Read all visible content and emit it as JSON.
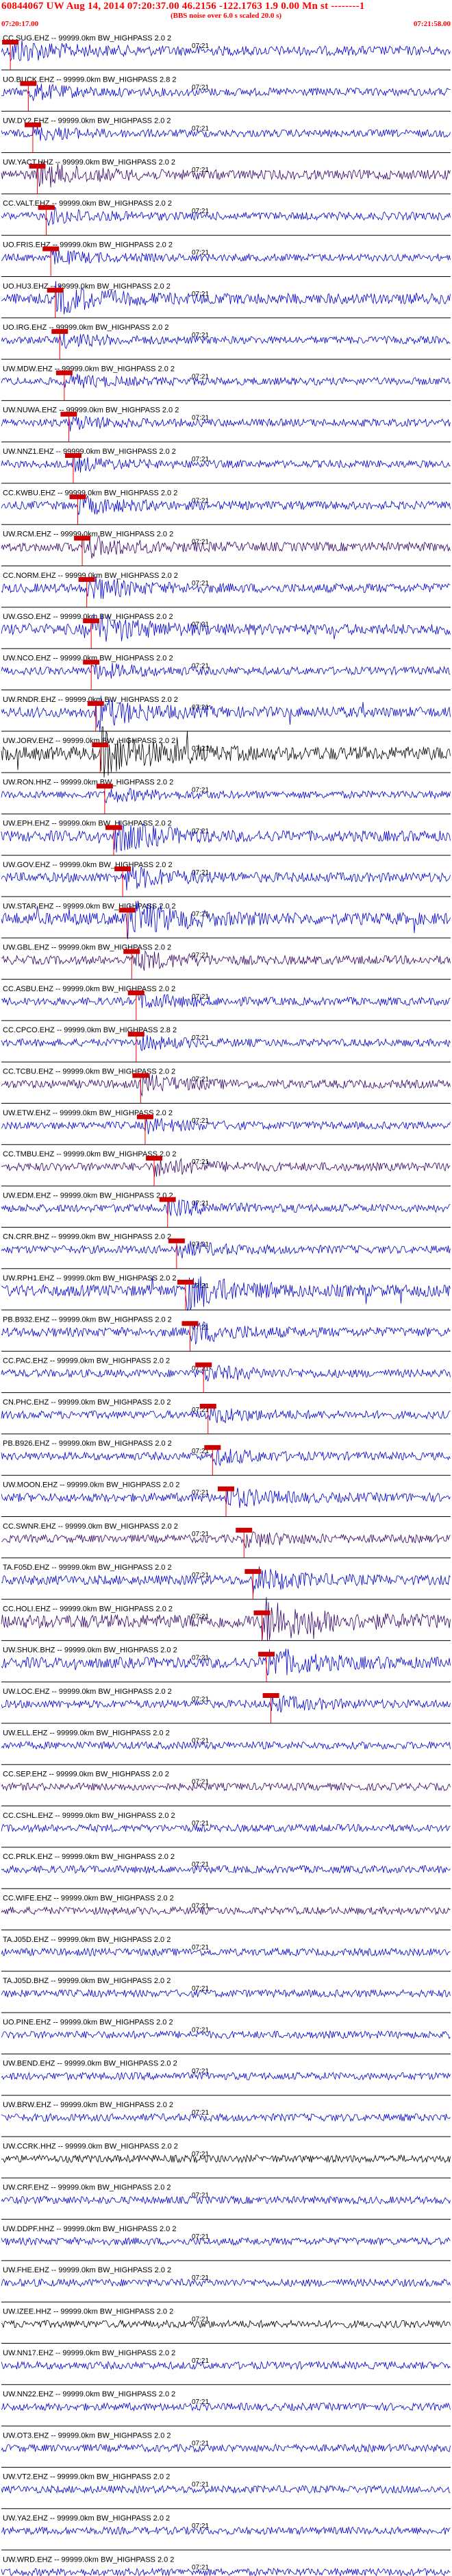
{
  "header": {
    "title": "60844067 UW Aug 14, 2014 07:20:37.00   46.2156 -122.1763  1.9 0.00 Mn st --------1",
    "subtitle": "(BBS noise over 6.0 s scaled 20.0 s)",
    "start_time": "07:20:17.00",
    "end_time": "07:21:58.00"
  },
  "colors": {
    "background": "#ffffff",
    "header_text": "#ff0000",
    "pick_marker": "#cc0000",
    "pick_line": "#ff0000",
    "baseline": "#000000",
    "trace_blue": "#0000cc",
    "trace_purple": "#330066",
    "trace_black": "#000000"
  },
  "chart_data": {
    "type": "line",
    "title": "60844067 UW Aug 14, 2014 07:20:37.00   46.2156 -122.1763  1.9 0.00 Mn st --------1",
    "xlim": [
      "07:20:17.00",
      "07:21:58.00"
    ],
    "tick_label": "07:21",
    "series": [
      {
        "name": "CC.SUG.EHZ -- 99999.0km BW_HIGHPASS  2.0 2",
        "pick": 0.02,
        "color": "blue",
        "energy": 1.0
      },
      {
        "name": "UO.BUCK.EHZ -- 99999.0km BW_HIGHPASS  2.8 2",
        "pick": 0.06,
        "color": "blue",
        "energy": 0.6
      },
      {
        "name": "UW.DY2.EHZ -- 99999.0km BW_HIGHPASS  2.0 2",
        "pick": 0.07,
        "color": "blue",
        "energy": 0.5
      },
      {
        "name": "UW.YACT.HHZ -- 99999.0km BW_HIGHPASS  2.0 2",
        "pick": 0.08,
        "color": "purple",
        "energy": 1.0
      },
      {
        "name": "CC.VALT.EHZ -- 99999.0km BW_HIGHPASS  2.0 2",
        "pick": 0.1,
        "color": "blue",
        "energy": 0.6
      },
      {
        "name": "UO.FRIS.EHZ -- 99999.0km BW_HIGHPASS  2.0 2",
        "pick": 0.11,
        "color": "blue",
        "energy": 0.5
      },
      {
        "name": "UO.HU3.EHZ -- 99999.0km BW_HIGHPASS  2.0 2",
        "pick": 0.12,
        "color": "blue",
        "energy": 1.2
      },
      {
        "name": "UO.IRG.EHZ -- 99999.0km BW_HIGHPASS  2.0 2",
        "pick": 0.13,
        "color": "blue",
        "energy": 0.5
      },
      {
        "name": "UW.MDW.EHZ -- 99999.0km BW_HIGHPASS  2.0 2",
        "pick": 0.14,
        "color": "blue",
        "energy": 0.5
      },
      {
        "name": "UW.NUWA.EHZ -- 99999.0km BW_HIGHPASS  2.0 2",
        "pick": 0.15,
        "color": "blue",
        "energy": 0.5
      },
      {
        "name": "UW.NNZ1.EHZ -- 99999.0km BW_HIGHPASS  2.0 2",
        "pick": 0.16,
        "color": "blue",
        "energy": 0.5
      },
      {
        "name": "CC.KWBU.EHZ -- 99999.0km BW_HIGHPASS  2.0 2",
        "pick": 0.17,
        "color": "blue",
        "energy": 0.7
      },
      {
        "name": "UW.RCM.EHZ -- 99999.0km BW_HIGHPASS  2.0 2",
        "pick": 0.18,
        "color": "purple",
        "energy": 0.9
      },
      {
        "name": "CC.NORM.EHZ -- 99999.0km BW_HIGHPASS  2.0 2",
        "pick": 0.19,
        "color": "blue",
        "energy": 0.9
      },
      {
        "name": "UW.GSO.EHZ -- 99999.0km BW_HIGHPASS  2.0 2",
        "pick": 0.2,
        "color": "blue",
        "energy": 1.3
      },
      {
        "name": "UW.NCO.EHZ -- 99999.0km BW_HIGHPASS  2.0 2",
        "pick": 0.2,
        "color": "blue",
        "energy": 0.6
      },
      {
        "name": "UW.RNDR.EHZ -- 99999.0km BW_HIGHPASS  2.0 2",
        "pick": 0.21,
        "color": "blue",
        "energy": 1.2
      },
      {
        "name": "UW.JORV.EHZ -- 99999.0km BW_HIGHPASS  2.0 2",
        "pick": 0.22,
        "color": "black",
        "energy": 2.0
      },
      {
        "name": "UW.RON.HHZ -- 99999.0km BW_HIGHPASS  2.0 2",
        "pick": 0.23,
        "color": "blue",
        "energy": 0.5
      },
      {
        "name": "UW.EPH.EHZ -- 99999.0km BW_HIGHPASS  2.0 2",
        "pick": 0.25,
        "color": "blue",
        "energy": 1.3
      },
      {
        "name": "UW.GOV.EHZ -- 99999.0km BW_HIGHPASS  2.0 2",
        "pick": 0.27,
        "color": "blue",
        "energy": 1.0
      },
      {
        "name": "UW.STAR.EHZ -- 99999.0km BW_HIGHPASS  2.0 2",
        "pick": 0.28,
        "color": "blue",
        "energy": 1.6
      },
      {
        "name": "UW.GBL.EHZ -- 99999.0km BW_HIGHPASS  2.0 2",
        "pick": 0.29,
        "color": "purple",
        "energy": 0.8
      },
      {
        "name": "CC.ASBU.EHZ -- 99999.0km BW_HIGHPASS  2.0 2",
        "pick": 0.3,
        "color": "blue",
        "energy": 0.6
      },
      {
        "name": "CC.CPCO.EHZ -- 99999.0km BW_HIGHPASS  2.8 2",
        "pick": 0.3,
        "color": "blue",
        "energy": 0.5
      },
      {
        "name": "CC.TCBU.EHZ -- 99999.0km BW_HIGHPASS  2.0 2",
        "pick": 0.31,
        "color": "purple",
        "energy": 0.7
      },
      {
        "name": "UW.ETW.EHZ -- 99999.0km BW_HIGHPASS  2.0 2",
        "pick": 0.32,
        "color": "blue",
        "energy": 0.5
      },
      {
        "name": "CC.TMBU.EHZ -- 99999.0km BW_HIGHPASS  2.0 2",
        "pick": 0.34,
        "color": "purple",
        "energy": 0.7
      },
      {
        "name": "UW.EDM.EHZ -- 99999.0km BW_HIGHPASS  2.0 2",
        "pick": 0.37,
        "color": "blue",
        "energy": 0.6
      },
      {
        "name": "CN.CRR.BHZ -- 99999.0km BW_HIGHPASS  2.0 2",
        "pick": 0.39,
        "color": "blue",
        "energy": 0.6
      },
      {
        "name": "UW.RPH1.EHZ -- 99999.0km BW_HIGHPASS  2.0 2",
        "pick": 0.41,
        "color": "blue",
        "energy": 1.5
      },
      {
        "name": "PB.B932.EHZ -- 99999.0km BW_HIGHPASS  2.0 2",
        "pick": 0.42,
        "color": "blue",
        "energy": 0.9
      },
      {
        "name": "CC.PAC.EHZ -- 99999.0km BW_HIGHPASS  2.0 2",
        "pick": 0.45,
        "color": "blue",
        "energy": 0.6
      },
      {
        "name": "CN.PHC.EHZ -- 99999.0km BW_HIGHPASS  2.0 2",
        "pick": 0.46,
        "color": "blue",
        "energy": 0.6
      },
      {
        "name": "PB.B926.EHZ -- 99999.0km BW_HIGHPASS  2.0 2",
        "pick": 0.47,
        "color": "blue",
        "energy": 0.6
      },
      {
        "name": "UW.MOON.EHZ -- 99999.0km BW_HIGHPASS  2.0 2",
        "pick": 0.5,
        "color": "blue",
        "energy": 0.8
      },
      {
        "name": "CC.SWNR.EHZ -- 99999.0km BW_HIGHPASS  2.0 2",
        "pick": 0.54,
        "color": "purple",
        "energy": 0.6
      },
      {
        "name": "TA.F05D.EHZ -- 99999.0km BW_HIGHPASS  2.0 2",
        "pick": 0.56,
        "color": "blue",
        "energy": 1.0
      },
      {
        "name": "CC.HOLI.EHZ -- 99999.0km BW_HIGHPASS  2.0 2",
        "pick": 0.58,
        "color": "purple",
        "energy": 2.0
      },
      {
        "name": "UW.SHUK.BHZ -- 99999.0km BW_HIGHPASS  2.0 2",
        "pick": 0.59,
        "color": "blue",
        "energy": 1.3
      },
      {
        "name": "UW.LOC.EHZ -- 99999.0km BW_HIGHPASS  2.0 2",
        "pick": 0.6,
        "color": "blue",
        "energy": 0.6
      },
      {
        "name": "UW.ELL.EHZ -- 99999.0km BW_HIGHPASS  2.0 2",
        "pick": null,
        "color": "blue",
        "energy": 0.5
      },
      {
        "name": "CC.SEP.EHZ -- 99999.0km BW_HIGHPASS  2.0 2",
        "pick": null,
        "color": "purple",
        "energy": 0.5
      },
      {
        "name": "CC.CSHL.EHZ -- 99999.0km BW_HIGHPASS  2.0 2",
        "pick": null,
        "color": "blue",
        "energy": 0.5
      },
      {
        "name": "CC.PRLK.EHZ -- 99999.0km BW_HIGHPASS  2.0 2",
        "pick": null,
        "color": "blue",
        "energy": 0.5
      },
      {
        "name": "CC.WIFE.EHZ -- 99999.0km BW_HIGHPASS  2.0 2",
        "pick": null,
        "color": "purple",
        "energy": 0.5
      },
      {
        "name": "TA.J05D.EHZ -- 99999.0km BW_HIGHPASS  2.0 2",
        "pick": null,
        "color": "blue",
        "energy": 0.5
      },
      {
        "name": "TA.J05D.BHZ -- 99999.0km BW_HIGHPASS  2.0 2",
        "pick": null,
        "color": "blue",
        "energy": 0.5
      },
      {
        "name": "UO.PINE.EHZ -- 99999.0km BW_HIGHPASS  2.0 2",
        "pick": null,
        "color": "blue",
        "energy": 0.5
      },
      {
        "name": "UW.BEND.EHZ -- 99999.0km BW_HIGHPASS  2.0 2",
        "pick": null,
        "color": "blue",
        "energy": 0.5
      },
      {
        "name": "UW.BRW.EHZ -- 99999.0km BW_HIGHPASS  2.0 2",
        "pick": null,
        "color": "blue",
        "energy": 0.5
      },
      {
        "name": "UW.CCRK.HHZ -- 99999.0km BW_HIGHPASS  2.0 2",
        "pick": null,
        "color": "black",
        "energy": 0.5
      },
      {
        "name": "UW.CRF.EHZ -- 99999.0km BW_HIGHPASS  2.0 2",
        "pick": null,
        "color": "blue",
        "energy": 0.5
      },
      {
        "name": "UW.DDPF.HHZ -- 99999.0km BW_HIGHPASS  2.0 2",
        "pick": null,
        "color": "blue",
        "energy": 0.5
      },
      {
        "name": "UW.FHE.EHZ -- 99999.0km BW_HIGHPASS  2.0 2",
        "pick": null,
        "color": "blue",
        "energy": 0.5
      },
      {
        "name": "UW.IZEE.HHZ -- 99999.0km BW_HIGHPASS  2.0 2",
        "pick": null,
        "color": "black",
        "energy": 0.5
      },
      {
        "name": "UW.NN17.EHZ -- 99999.0km BW_HIGHPASS  2.0 2",
        "pick": null,
        "color": "blue",
        "energy": 0.5
      },
      {
        "name": "UW.NN22.EHZ -- 99999.0km BW_HIGHPASS  2.0 2",
        "pick": null,
        "color": "blue",
        "energy": 0.5
      },
      {
        "name": "UW.OT3.EHZ -- 99999.0km BW_HIGHPASS  2.0 2",
        "pick": null,
        "color": "blue",
        "energy": 0.5
      },
      {
        "name": "UW.VT2.EHZ -- 99999.0km BW_HIGHPASS  2.0 2",
        "pick": null,
        "color": "blue",
        "energy": 0.5
      },
      {
        "name": "UW.YA2.EHZ -- 99999.0km BW_HIGHPASS  2.0 2",
        "pick": null,
        "color": "blue",
        "energy": 0.5
      },
      {
        "name": "UW.WRD.EHZ -- 99999.0km BW_HIGHPASS  2.0 2",
        "pick": null,
        "color": "blue",
        "energy": 0.5
      }
    ]
  }
}
